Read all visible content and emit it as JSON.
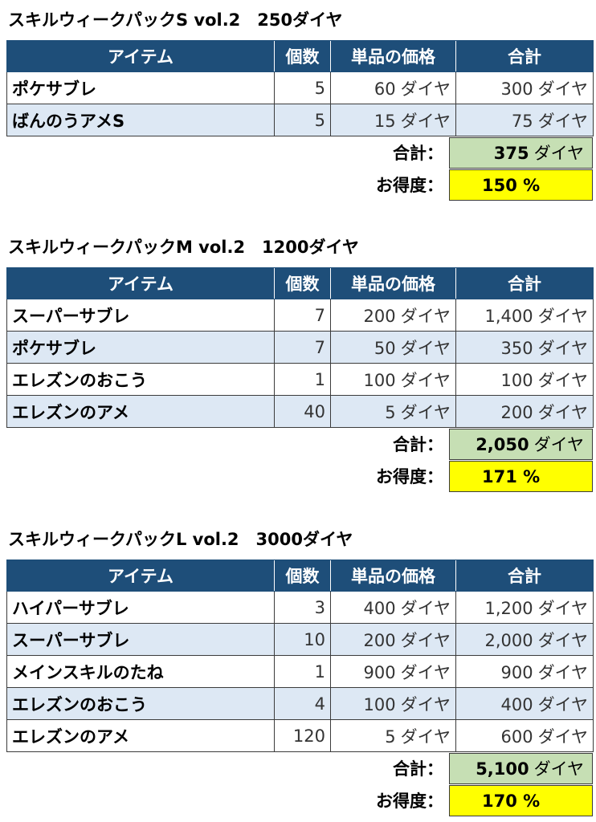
{
  "headers": {
    "item": "アイテム",
    "qty": "個数",
    "unit_price": "単品の価格",
    "total": "合計"
  },
  "unit": "ダイヤ",
  "total_label": "合計：",
  "deal_label": "お得度：",
  "packs": [
    {
      "title": "スキルウィークパックS vol.2　250ダイヤ",
      "rows": [
        {
          "name": "ポケサブレ",
          "qty": "5",
          "unit_price": "60",
          "total": "300"
        },
        {
          "name": "ばんのうアメS",
          "qty": "5",
          "unit_price": "15",
          "total": "75"
        }
      ],
      "sum": "375",
      "deal": "150 %"
    },
    {
      "title": "スキルウィークパックM vol.2　1200ダイヤ",
      "rows": [
        {
          "name": "スーパーサブレ",
          "qty": "7",
          "unit_price": "200",
          "total": "1,400"
        },
        {
          "name": "ポケサブレ",
          "qty": "7",
          "unit_price": "50",
          "total": "350"
        },
        {
          "name": "エレズンのおこう",
          "qty": "1",
          "unit_price": "100",
          "total": "100"
        },
        {
          "name": "エレズンのアメ",
          "qty": "40",
          "unit_price": "5",
          "total": "200"
        }
      ],
      "sum": "2,050",
      "deal": "171 %"
    },
    {
      "title": "スキルウィークパックL vol.2　3000ダイヤ",
      "rows": [
        {
          "name": "ハイパーサブレ",
          "qty": "3",
          "unit_price": "400",
          "total": "1,200"
        },
        {
          "name": "スーパーサブレ",
          "qty": "10",
          "unit_price": "200",
          "total": "2,000"
        },
        {
          "name": "メインスキルのたね",
          "qty": "1",
          "unit_price": "900",
          "total": "900"
        },
        {
          "name": "エレズンのおこう",
          "qty": "4",
          "unit_price": "100",
          "total": "400"
        },
        {
          "name": "エレズンのアメ",
          "qty": "120",
          "unit_price": "5",
          "total": "600"
        }
      ],
      "sum": "5,100",
      "deal": "170 %"
    }
  ]
}
